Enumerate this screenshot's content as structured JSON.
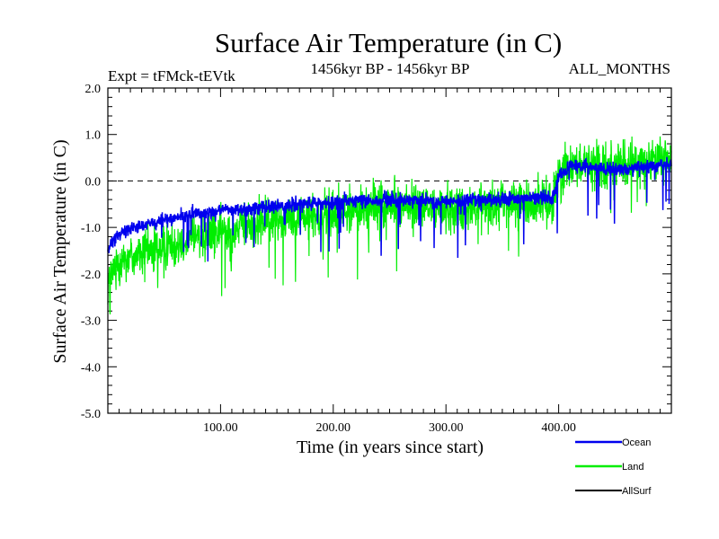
{
  "chart_data": {
    "type": "line",
    "title": "Surface Air Temperature (in C)",
    "subtitle_left": "Expt = tFMck-tEVtk",
    "subtitle_center": "1456kyr BP - 1456kyr BP",
    "subtitle_right": "ALL_MONTHS",
    "xlabel": "Time (in years since start)",
    "ylabel": "Surface Air Temperature (in C)",
    "xlim": [
      0,
      500
    ],
    "ylim": [
      -5.0,
      2.0
    ],
    "x_ticks": [
      100,
      200,
      300,
      400
    ],
    "x_tick_labels": [
      "100.00",
      "200.00",
      "300.00",
      "400.00"
    ],
    "y_ticks": [
      -5,
      -4,
      -3,
      -2,
      -1,
      0,
      1,
      2
    ],
    "y_tick_labels": [
      "-5.0",
      "-4.0",
      "-3.0",
      "-2.0",
      "-1.0",
      "0.0",
      "1.0",
      "2.0"
    ],
    "reference_line": 0.0,
    "series": [
      {
        "name": "Land",
        "color": "#00ee00",
        "x": [
          0,
          10,
          25,
          50,
          75,
          100,
          150,
          200,
          250,
          300,
          350,
          395,
          400,
          410,
          450,
          500
        ],
        "values": [
          -2.2,
          -1.7,
          -1.6,
          -1.4,
          -1.2,
          -1.1,
          -0.8,
          -0.7,
          -0.5,
          -0.6,
          -0.5,
          -0.45,
          0.1,
          0.4,
          0.3,
          0.5
        ]
      },
      {
        "name": "Ocean",
        "color": "#0000ee",
        "x": [
          0,
          10,
          25,
          50,
          75,
          100,
          150,
          200,
          250,
          300,
          350,
          395,
          400,
          410,
          450,
          500
        ],
        "values": [
          -1.5,
          -1.1,
          -1.0,
          -0.85,
          -0.7,
          -0.65,
          -0.55,
          -0.45,
          -0.4,
          -0.45,
          -0.4,
          -0.35,
          0.1,
          0.35,
          0.25,
          0.35
        ]
      },
      {
        "name": "AllSurf",
        "color": "#000000",
        "x": [],
        "values": []
      }
    ]
  }
}
